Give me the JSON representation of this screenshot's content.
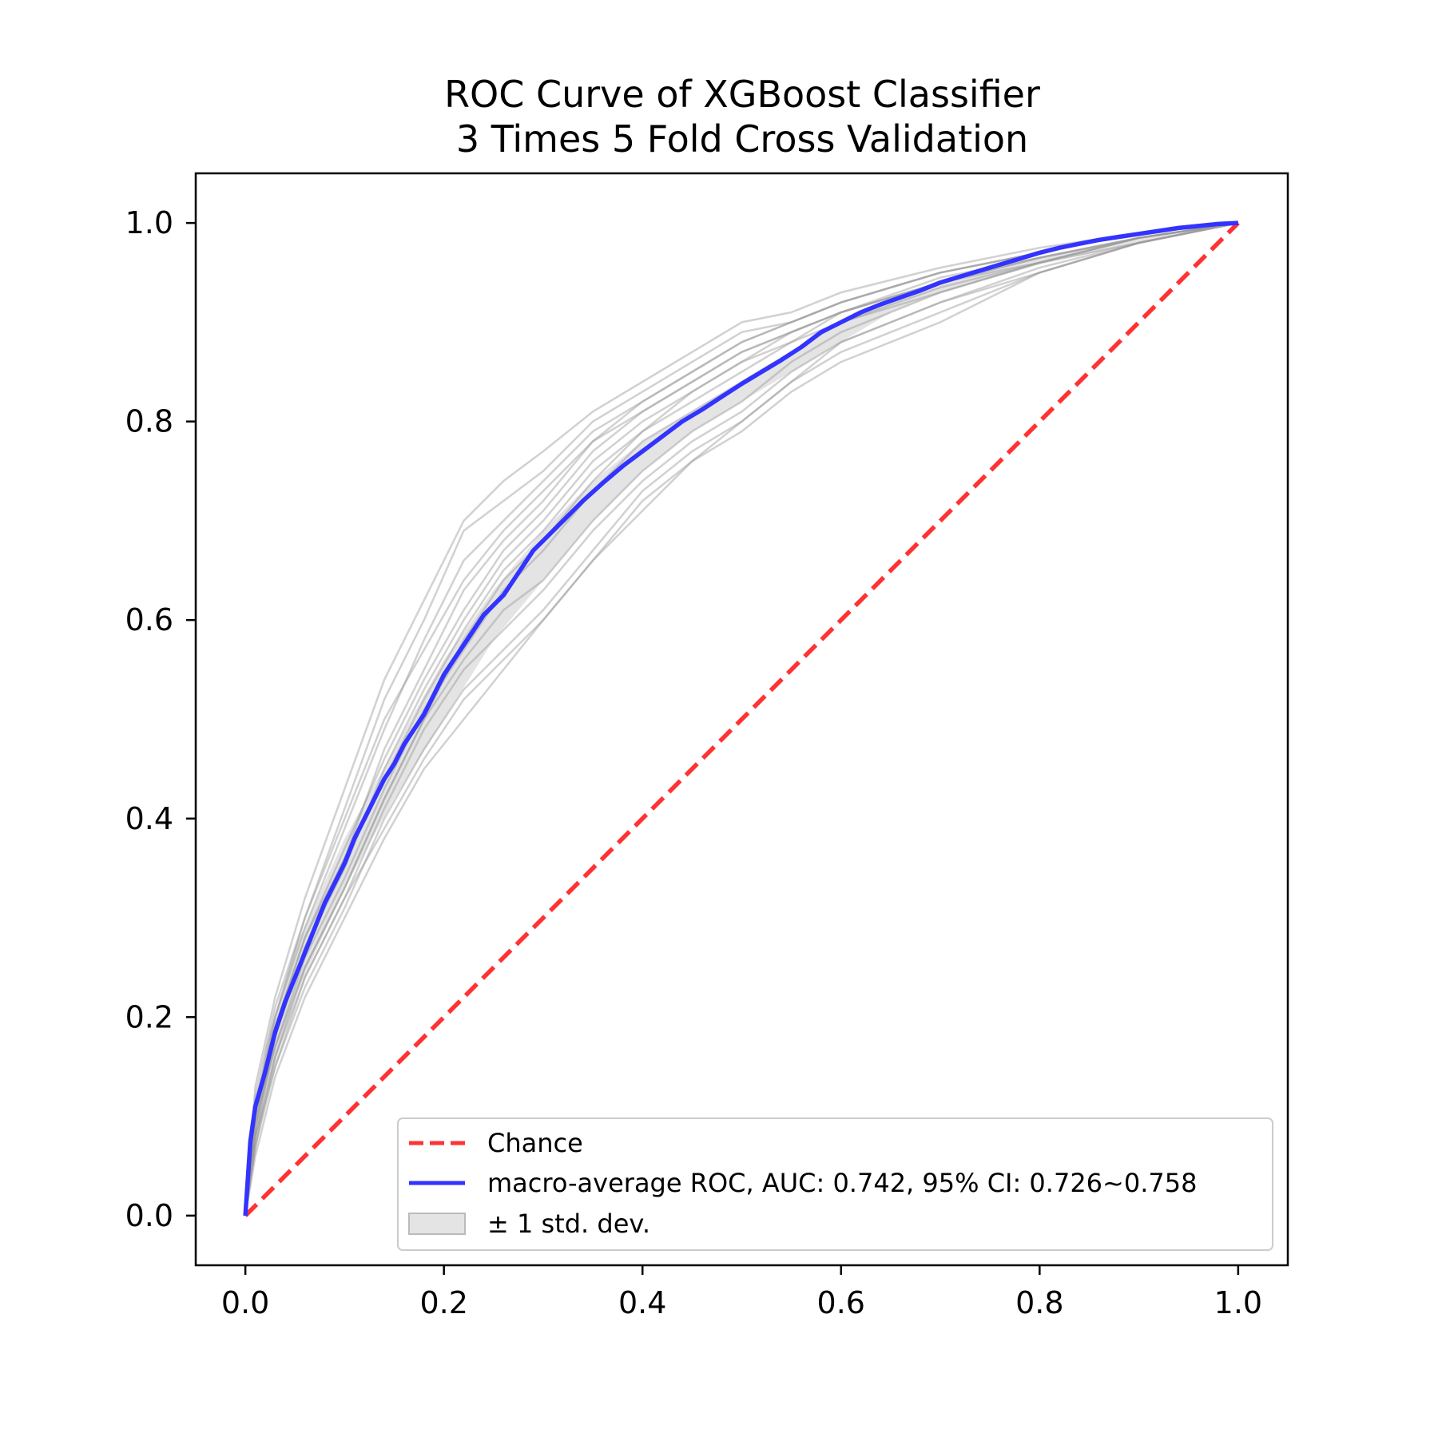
{
  "chart_data": {
    "type": "line",
    "title": "ROC Curve of XGBoost Classifier\n 3 Times 5 Fold Cross Validation",
    "title_lines": [
      "ROC Curve of XGBoost Classifier",
      "3 Times 5 Fold Cross Validation"
    ],
    "xlabel": "",
    "ylabel": "",
    "xlim": [
      -0.05,
      1.05
    ],
    "ylim": [
      -0.05,
      1.05
    ],
    "xticks": [
      "0.0",
      "0.2",
      "0.4",
      "0.6",
      "0.8",
      "1.0"
    ],
    "yticks": [
      "0.0",
      "0.2",
      "0.4",
      "0.6",
      "0.8",
      "1.0"
    ],
    "grid": false,
    "legend_position": "lower-right",
    "colors": {
      "chance": "#ff3333",
      "mean": "#3333ff",
      "folds": "#999999",
      "band": "#d9d9d9"
    },
    "chance": {
      "name": "Chance",
      "x": [
        0,
        1
      ],
      "y": [
        0,
        1
      ]
    },
    "mean_roc": {
      "name": "macro-average ROC, AUC: 0.742, 95% CI: 0.726~0.758",
      "x": [
        0,
        0.005,
        0.01,
        0.02,
        0.03,
        0.04,
        0.05,
        0.06,
        0.07,
        0.08,
        0.09,
        0.1,
        0.11,
        0.12,
        0.13,
        0.14,
        0.15,
        0.16,
        0.17,
        0.18,
        0.19,
        0.2,
        0.21,
        0.22,
        0.23,
        0.24,
        0.25,
        0.26,
        0.27,
        0.28,
        0.29,
        0.3,
        0.32,
        0.34,
        0.36,
        0.38,
        0.4,
        0.42,
        0.44,
        0.46,
        0.48,
        0.5,
        0.52,
        0.54,
        0.56,
        0.58,
        0.6,
        0.62,
        0.64,
        0.66,
        0.68,
        0.7,
        0.72,
        0.74,
        0.76,
        0.78,
        0.8,
        0.82,
        0.84,
        0.86,
        0.88,
        0.9,
        0.92,
        0.94,
        0.96,
        0.98,
        1.0
      ],
      "y": [
        0,
        0.075,
        0.11,
        0.145,
        0.185,
        0.215,
        0.24,
        0.265,
        0.29,
        0.315,
        0.335,
        0.355,
        0.38,
        0.4,
        0.42,
        0.44,
        0.455,
        0.475,
        0.49,
        0.505,
        0.525,
        0.545,
        0.56,
        0.575,
        0.59,
        0.605,
        0.615,
        0.625,
        0.64,
        0.655,
        0.67,
        0.68,
        0.7,
        0.72,
        0.738,
        0.755,
        0.77,
        0.785,
        0.8,
        0.812,
        0.825,
        0.838,
        0.85,
        0.862,
        0.875,
        0.89,
        0.9,
        0.91,
        0.918,
        0.925,
        0.932,
        0.94,
        0.946,
        0.952,
        0.958,
        0.964,
        0.97,
        0.975,
        0.979,
        0.983,
        0.986,
        0.989,
        0.992,
        0.995,
        0.997,
        0.999,
        1.0
      ]
    },
    "std_band": {
      "name": "± 1 std. dev.",
      "x": [
        0,
        0.02,
        0.05,
        0.1,
        0.15,
        0.2,
        0.25,
        0.3,
        0.35,
        0.4,
        0.45,
        0.5,
        0.55,
        0.6,
        0.65,
        0.7,
        0.8,
        0.9,
        1.0
      ],
      "upper": [
        0,
        0.17,
        0.27,
        0.38,
        0.47,
        0.56,
        0.63,
        0.69,
        0.74,
        0.78,
        0.81,
        0.84,
        0.87,
        0.9,
        0.92,
        0.94,
        0.965,
        0.985,
        1.0
      ],
      "lower": [
        0,
        0.12,
        0.22,
        0.33,
        0.42,
        0.5,
        0.58,
        0.64,
        0.7,
        0.75,
        0.79,
        0.82,
        0.85,
        0.88,
        0.91,
        0.93,
        0.958,
        0.98,
        1.0
      ]
    },
    "fold_curves": [
      {
        "x": [
          0,
          0.01,
          0.03,
          0.06,
          0.1,
          0.14,
          0.18,
          0.22,
          0.26,
          0.3,
          0.35,
          0.4,
          0.45,
          0.5,
          0.55,
          0.6,
          0.7,
          0.8,
          0.9,
          1.0
        ],
        "y": [
          0,
          0.12,
          0.21,
          0.3,
          0.41,
          0.52,
          0.6,
          0.69,
          0.72,
          0.75,
          0.8,
          0.83,
          0.86,
          0.89,
          0.9,
          0.92,
          0.95,
          0.97,
          0.99,
          1.0
        ]
      },
      {
        "x": [
          0,
          0.01,
          0.03,
          0.06,
          0.1,
          0.14,
          0.18,
          0.22,
          0.26,
          0.3,
          0.35,
          0.4,
          0.45,
          0.5,
          0.55,
          0.6,
          0.7,
          0.8,
          0.9,
          1.0
        ],
        "y": [
          0,
          0.06,
          0.14,
          0.22,
          0.3,
          0.38,
          0.45,
          0.5,
          0.55,
          0.6,
          0.66,
          0.72,
          0.76,
          0.79,
          0.83,
          0.86,
          0.9,
          0.95,
          0.98,
          1.0
        ]
      },
      {
        "x": [
          0,
          0.01,
          0.03,
          0.06,
          0.1,
          0.14,
          0.18,
          0.22,
          0.26,
          0.3,
          0.35,
          0.4,
          0.45,
          0.5,
          0.55,
          0.6,
          0.7,
          0.8,
          0.9,
          1.0
        ],
        "y": [
          0,
          0.1,
          0.19,
          0.28,
          0.36,
          0.47,
          0.55,
          0.63,
          0.68,
          0.72,
          0.78,
          0.81,
          0.84,
          0.87,
          0.89,
          0.91,
          0.94,
          0.96,
          0.985,
          1.0
        ]
      },
      {
        "x": [
          0,
          0.01,
          0.03,
          0.06,
          0.1,
          0.14,
          0.18,
          0.22,
          0.26,
          0.3,
          0.35,
          0.4,
          0.45,
          0.5,
          0.55,
          0.6,
          0.7,
          0.8,
          0.9,
          1.0
        ],
        "y": [
          0,
          0.08,
          0.16,
          0.25,
          0.33,
          0.42,
          0.5,
          0.56,
          0.61,
          0.64,
          0.7,
          0.75,
          0.79,
          0.82,
          0.86,
          0.89,
          0.93,
          0.96,
          0.985,
          1.0
        ]
      },
      {
        "x": [
          0,
          0.01,
          0.03,
          0.06,
          0.1,
          0.14,
          0.18,
          0.22,
          0.26,
          0.3,
          0.35,
          0.4,
          0.45,
          0.5,
          0.55,
          0.6,
          0.7,
          0.8,
          0.9,
          1.0
        ],
        "y": [
          0,
          0.11,
          0.2,
          0.29,
          0.39,
          0.49,
          0.58,
          0.66,
          0.7,
          0.74,
          0.79,
          0.82,
          0.85,
          0.88,
          0.9,
          0.92,
          0.95,
          0.97,
          0.99,
          1.0
        ]
      },
      {
        "x": [
          0,
          0.01,
          0.03,
          0.06,
          0.1,
          0.14,
          0.18,
          0.22,
          0.26,
          0.3,
          0.35,
          0.4,
          0.45,
          0.5,
          0.55,
          0.6,
          0.7,
          0.8,
          0.9,
          1.0
        ],
        "y": [
          0,
          0.07,
          0.15,
          0.23,
          0.31,
          0.4,
          0.47,
          0.53,
          0.57,
          0.61,
          0.67,
          0.73,
          0.77,
          0.8,
          0.84,
          0.88,
          0.92,
          0.95,
          0.98,
          1.0
        ]
      },
      {
        "x": [
          0,
          0.01,
          0.03,
          0.06,
          0.1,
          0.14,
          0.18,
          0.22,
          0.26,
          0.3,
          0.35,
          0.4,
          0.45,
          0.5,
          0.55,
          0.6,
          0.7,
          0.8,
          0.9,
          1.0
        ],
        "y": [
          0,
          0.09,
          0.18,
          0.27,
          0.35,
          0.45,
          0.53,
          0.6,
          0.66,
          0.7,
          0.76,
          0.8,
          0.83,
          0.86,
          0.88,
          0.91,
          0.94,
          0.965,
          0.985,
          1.0
        ]
      },
      {
        "x": [
          0,
          0.01,
          0.03,
          0.06,
          0.1,
          0.14,
          0.18,
          0.22,
          0.26,
          0.3,
          0.35,
          0.4,
          0.45,
          0.5,
          0.55,
          0.6,
          0.7,
          0.8,
          0.9,
          1.0
        ],
        "y": [
          0,
          0.1,
          0.17,
          0.26,
          0.34,
          0.43,
          0.51,
          0.57,
          0.63,
          0.67,
          0.73,
          0.78,
          0.81,
          0.84,
          0.87,
          0.9,
          0.93,
          0.96,
          0.98,
          1.0
        ]
      },
      {
        "x": [
          0,
          0.01,
          0.03,
          0.06,
          0.1,
          0.14,
          0.18,
          0.22,
          0.26,
          0.3,
          0.35,
          0.4,
          0.45,
          0.5,
          0.55,
          0.6,
          0.7,
          0.8,
          0.9,
          1.0
        ],
        "y": [
          0,
          0.13,
          0.22,
          0.32,
          0.43,
          0.54,
          0.62,
          0.7,
          0.74,
          0.77,
          0.81,
          0.84,
          0.87,
          0.9,
          0.91,
          0.93,
          0.955,
          0.975,
          0.99,
          1.0
        ]
      },
      {
        "x": [
          0,
          0.01,
          0.03,
          0.06,
          0.1,
          0.14,
          0.18,
          0.22,
          0.26,
          0.3,
          0.35,
          0.4,
          0.45,
          0.5,
          0.55,
          0.6,
          0.7,
          0.8,
          0.9,
          1.0
        ],
        "y": [
          0,
          0.08,
          0.15,
          0.24,
          0.32,
          0.41,
          0.49,
          0.55,
          0.59,
          0.63,
          0.69,
          0.74,
          0.78,
          0.81,
          0.85,
          0.88,
          0.92,
          0.955,
          0.98,
          1.0
        ]
      },
      {
        "x": [
          0,
          0.01,
          0.03,
          0.06,
          0.1,
          0.14,
          0.18,
          0.22,
          0.26,
          0.3,
          0.35,
          0.4,
          0.45,
          0.5,
          0.55,
          0.6,
          0.7,
          0.8,
          0.9,
          1.0
        ],
        "y": [
          0,
          0.09,
          0.19,
          0.28,
          0.37,
          0.46,
          0.54,
          0.61,
          0.67,
          0.71,
          0.77,
          0.81,
          0.84,
          0.87,
          0.89,
          0.91,
          0.945,
          0.965,
          0.985,
          1.0
        ]
      },
      {
        "x": [
          0,
          0.01,
          0.03,
          0.06,
          0.1,
          0.14,
          0.18,
          0.22,
          0.26,
          0.3,
          0.35,
          0.4,
          0.45,
          0.5,
          0.55,
          0.6,
          0.7,
          0.8,
          0.9,
          1.0
        ],
        "y": [
          0,
          0.07,
          0.16,
          0.24,
          0.32,
          0.39,
          0.46,
          0.52,
          0.56,
          0.6,
          0.66,
          0.71,
          0.76,
          0.8,
          0.84,
          0.87,
          0.91,
          0.95,
          0.98,
          1.0
        ]
      },
      {
        "x": [
          0,
          0.01,
          0.03,
          0.06,
          0.1,
          0.14,
          0.18,
          0.22,
          0.26,
          0.3,
          0.35,
          0.4,
          0.45,
          0.5,
          0.55,
          0.6,
          0.7,
          0.8,
          0.9,
          1.0
        ],
        "y": [
          0,
          0.11,
          0.2,
          0.3,
          0.4,
          0.5,
          0.57,
          0.64,
          0.69,
          0.73,
          0.78,
          0.82,
          0.85,
          0.88,
          0.9,
          0.92,
          0.95,
          0.97,
          0.99,
          1.0
        ]
      },
      {
        "x": [
          0,
          0.01,
          0.03,
          0.06,
          0.1,
          0.14,
          0.18,
          0.22,
          0.26,
          0.3,
          0.35,
          0.4,
          0.45,
          0.5,
          0.55,
          0.6,
          0.7,
          0.8,
          0.9,
          1.0
        ],
        "y": [
          0,
          0.09,
          0.17,
          0.25,
          0.33,
          0.42,
          0.5,
          0.58,
          0.64,
          0.68,
          0.74,
          0.79,
          0.82,
          0.85,
          0.88,
          0.9,
          0.935,
          0.96,
          0.985,
          1.0
        ]
      },
      {
        "x": [
          0,
          0.01,
          0.03,
          0.06,
          0.1,
          0.14,
          0.18,
          0.22,
          0.26,
          0.3,
          0.35,
          0.4,
          0.45,
          0.5,
          0.55,
          0.6,
          0.7,
          0.8,
          0.9,
          1.0
        ],
        "y": [
          0,
          0.08,
          0.18,
          0.27,
          0.36,
          0.44,
          0.52,
          0.59,
          0.65,
          0.69,
          0.75,
          0.79,
          0.83,
          0.86,
          0.89,
          0.91,
          0.94,
          0.965,
          0.985,
          1.0
        ]
      }
    ]
  }
}
